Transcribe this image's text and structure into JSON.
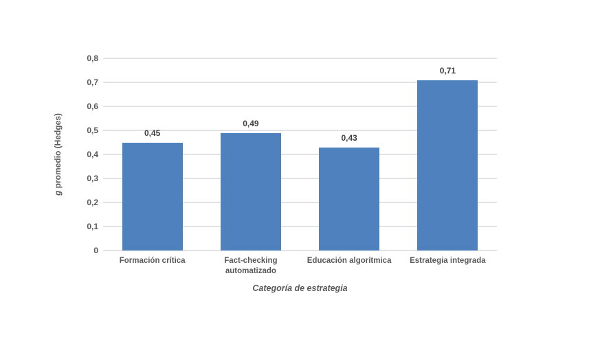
{
  "chart_data": {
    "type": "bar",
    "title": "",
    "categories": [
      "Formación crítica",
      "Fact-checking automatizado",
      "Educación algorítmica",
      "Estrategia integrada"
    ],
    "values": [
      0.45,
      0.49,
      0.43,
      0.71
    ],
    "value_labels": [
      "0,45",
      "0,49",
      "0,43",
      "0,71"
    ],
    "xlabel": "Categoría de estrategia",
    "ylabel": "g promedio (Hedges)",
    "ylim": [
      0,
      0.8
    ],
    "ytick_step": 0.1,
    "ytick_labels": [
      "0",
      "0,1",
      "0,2",
      "0,3",
      "0,4",
      "0,5",
      "0,6",
      "0,7",
      "0,8"
    ],
    "grid": true,
    "legend_position": "none",
    "bar_color": "#4E81BD",
    "gridline_color": "#E2E2E2",
    "axis_text_color": "#595959",
    "data_label_color": "#404040",
    "background_color": "#FFFFFF"
  }
}
